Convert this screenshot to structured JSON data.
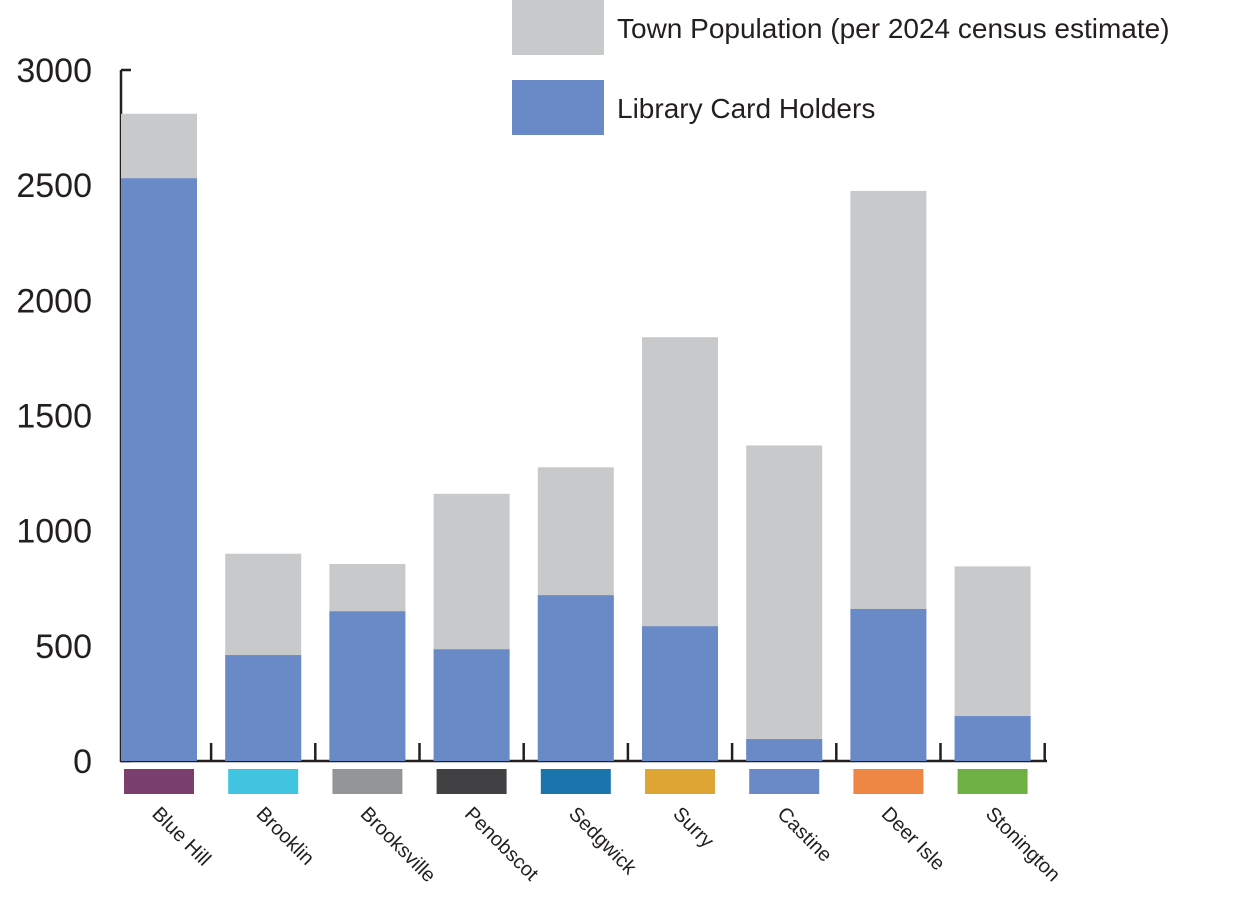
{
  "chart_data": {
    "type": "bar",
    "stacking": "overlay",
    "categories": [
      "Blue Hill",
      "Brooklin",
      "Brooksville",
      "Penobscot",
      "Sedgwick",
      "Surry",
      "Castine",
      "Deer Isle",
      "Stonington"
    ],
    "category_colors": [
      "#7b3f6e",
      "#41c4e0",
      "#939598",
      "#414042",
      "#1a75ad",
      "#dca534",
      "#6a89c7",
      "#ef8744",
      "#6fb045"
    ],
    "series": [
      {
        "name": "Town Population (per 2024 census estimate)",
        "color": "#c8c9cb",
        "values": [
          2810,
          900,
          855,
          1160,
          1275,
          1840,
          1370,
          2475,
          845
        ]
      },
      {
        "name": "Library Card Holders",
        "color": "#6a89c7",
        "values": [
          2530,
          460,
          650,
          485,
          720,
          585,
          95,
          660,
          195
        ]
      }
    ],
    "title": "",
    "xlabel": "",
    "ylabel": "",
    "ylim": [
      0,
      3000
    ],
    "yticks": [
      "0",
      "500",
      "1000",
      "1500",
      "2000",
      "2500",
      "3000"
    ],
    "grid": false,
    "legend_position": "top-right"
  }
}
